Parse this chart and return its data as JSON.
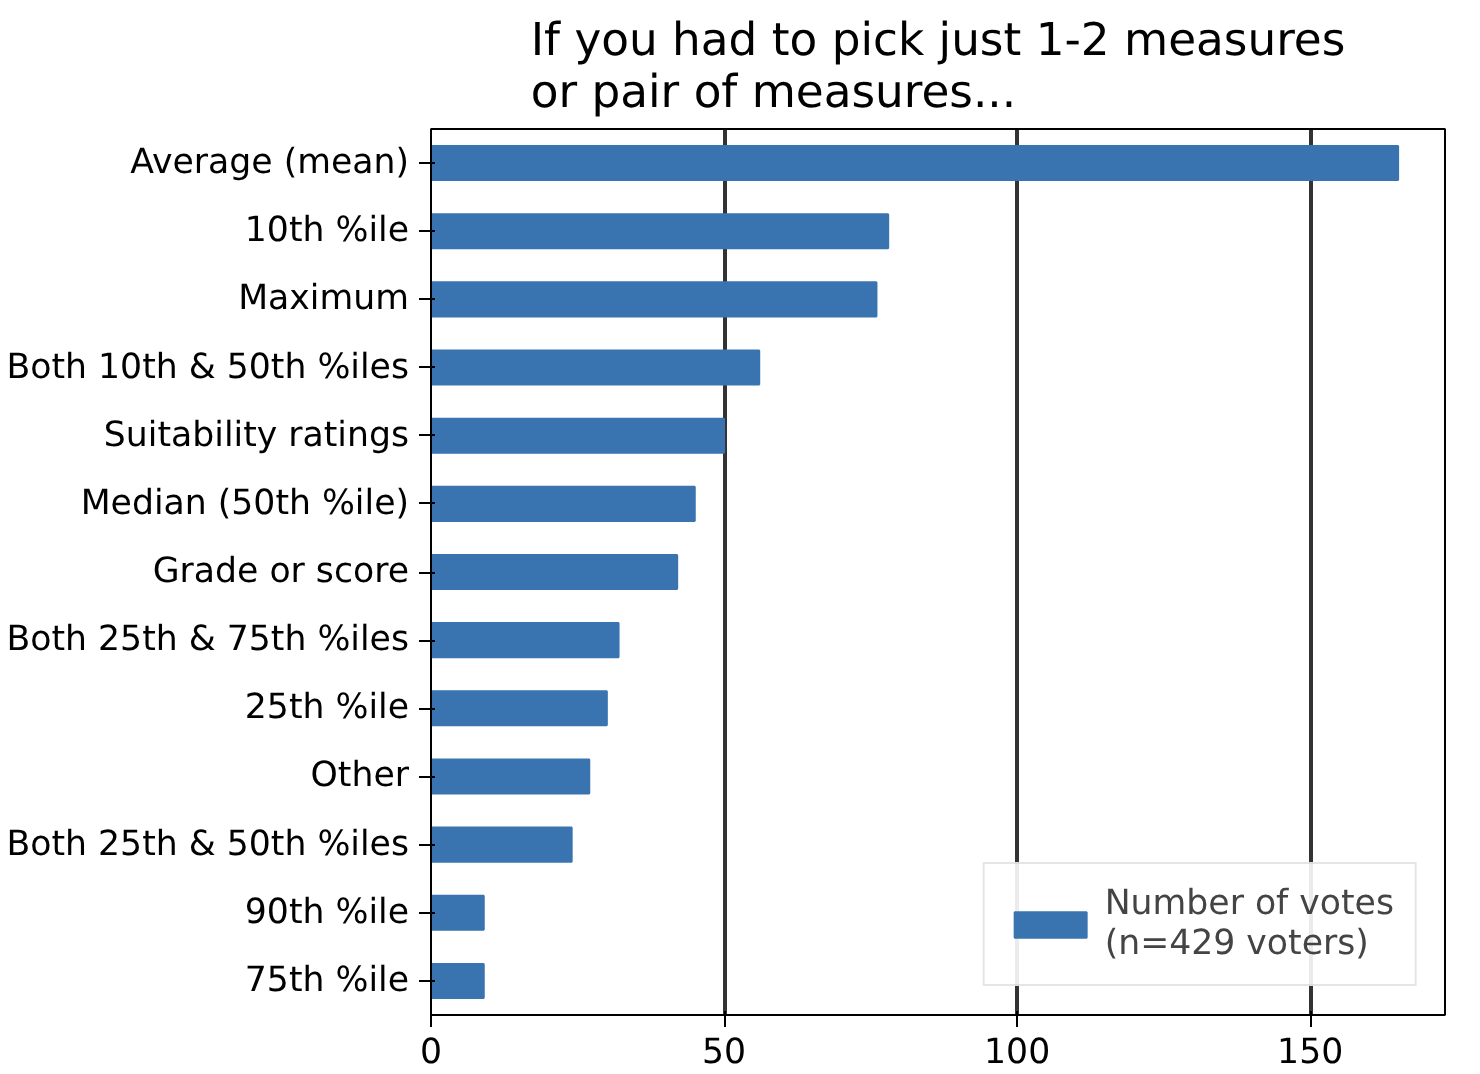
{
  "chart_data": {
    "type": "bar",
    "orientation": "horizontal",
    "title": "If you had to pick just 1-2 measures\nor pair of measures...",
    "categories": [
      "Average (mean)",
      "10th %ile",
      "Maximum",
      "Both 10th & 50th %iles",
      "Suitability ratings",
      "Median (50th %ile)",
      "Grade or score",
      "Both 25th & 75th %iles",
      "25th %ile",
      "Other",
      "Both 25th & 50th %iles",
      "90th %ile",
      "75th %ile"
    ],
    "series": [
      {
        "name": "Number of votes\n(n=429 voters)",
        "color": "#3a74b0",
        "values": [
          165,
          78,
          76,
          56,
          50,
          45,
          42,
          32,
          30,
          27,
          24,
          9,
          9
        ]
      }
    ],
    "xlim": [
      0,
      173
    ],
    "xticks": [
      0,
      50,
      100,
      150
    ],
    "grid": "x",
    "legend": "bottom right"
  }
}
